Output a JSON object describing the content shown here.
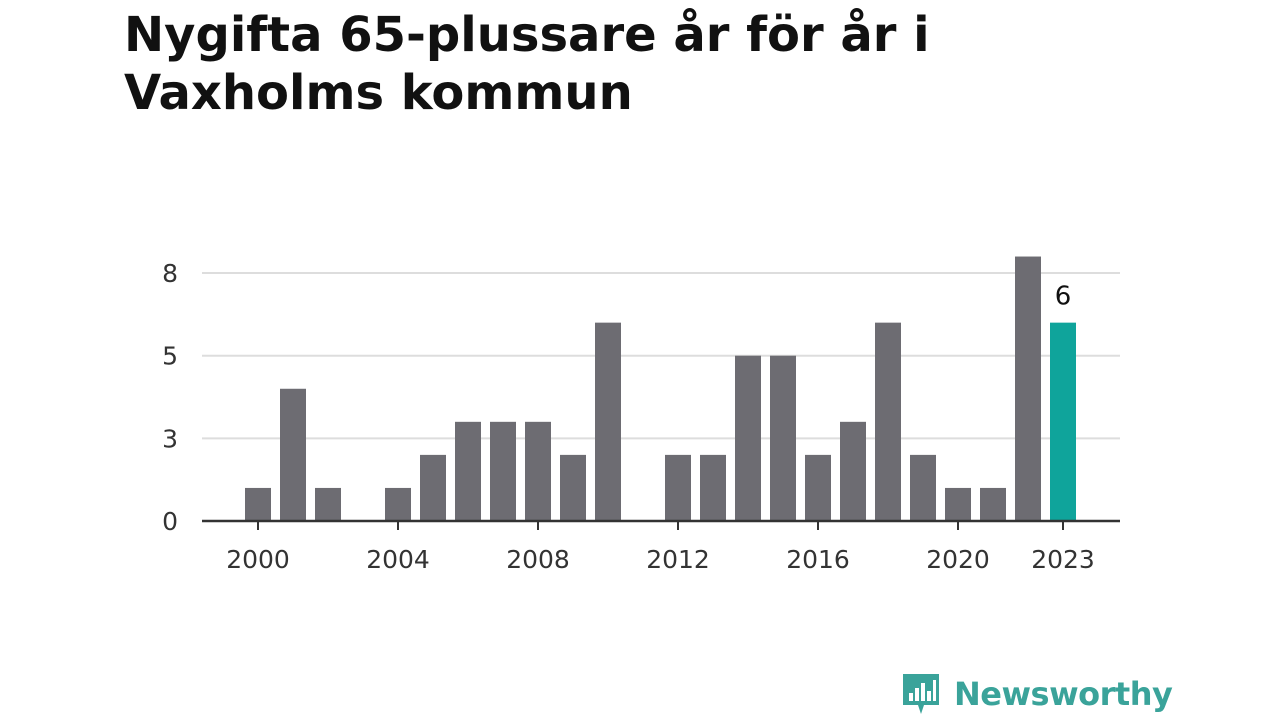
{
  "title": "Nygifta 65-plussare år för år i Vaxholms kommun",
  "brand": {
    "name": "Newsworthy",
    "icon": "newsworthy-logo-icon",
    "color": "#3aa39a"
  },
  "chart_data": {
    "type": "bar",
    "title": "Nygifta 65-plussare år för år i Vaxholms kommun",
    "xlabel": "",
    "ylabel": "",
    "ylim": [
      0,
      8.5
    ],
    "grid": true,
    "y_ticks": [
      {
        "value": 0,
        "label": "0"
      },
      {
        "value": 2.5,
        "label": "3"
      },
      {
        "value": 5,
        "label": "5"
      },
      {
        "value": 7.5,
        "label": "8"
      }
    ],
    "x_ticks": [
      "2000",
      "2004",
      "2008",
      "2012",
      "2016",
      "2020",
      "2023"
    ],
    "categories": [
      "2000",
      "2001",
      "2002",
      "2003",
      "2004",
      "2005",
      "2006",
      "2007",
      "2008",
      "2009",
      "2010",
      "2011",
      "2012",
      "2013",
      "2014",
      "2015",
      "2016",
      "2017",
      "2018",
      "2019",
      "2020",
      "2021",
      "2022",
      "2023"
    ],
    "values": [
      1,
      4,
      1,
      0,
      1,
      2,
      3,
      3,
      3,
      2,
      6,
      0,
      2,
      2,
      5,
      5,
      2,
      3,
      6,
      2,
      1,
      1,
      8,
      6
    ],
    "highlight_index": 23,
    "highlight_label": "6",
    "bar_color": "#6d6c72",
    "highlight_color": "#0fa49b",
    "grid_color": "#dddddd",
    "axis_color": "#333333"
  }
}
